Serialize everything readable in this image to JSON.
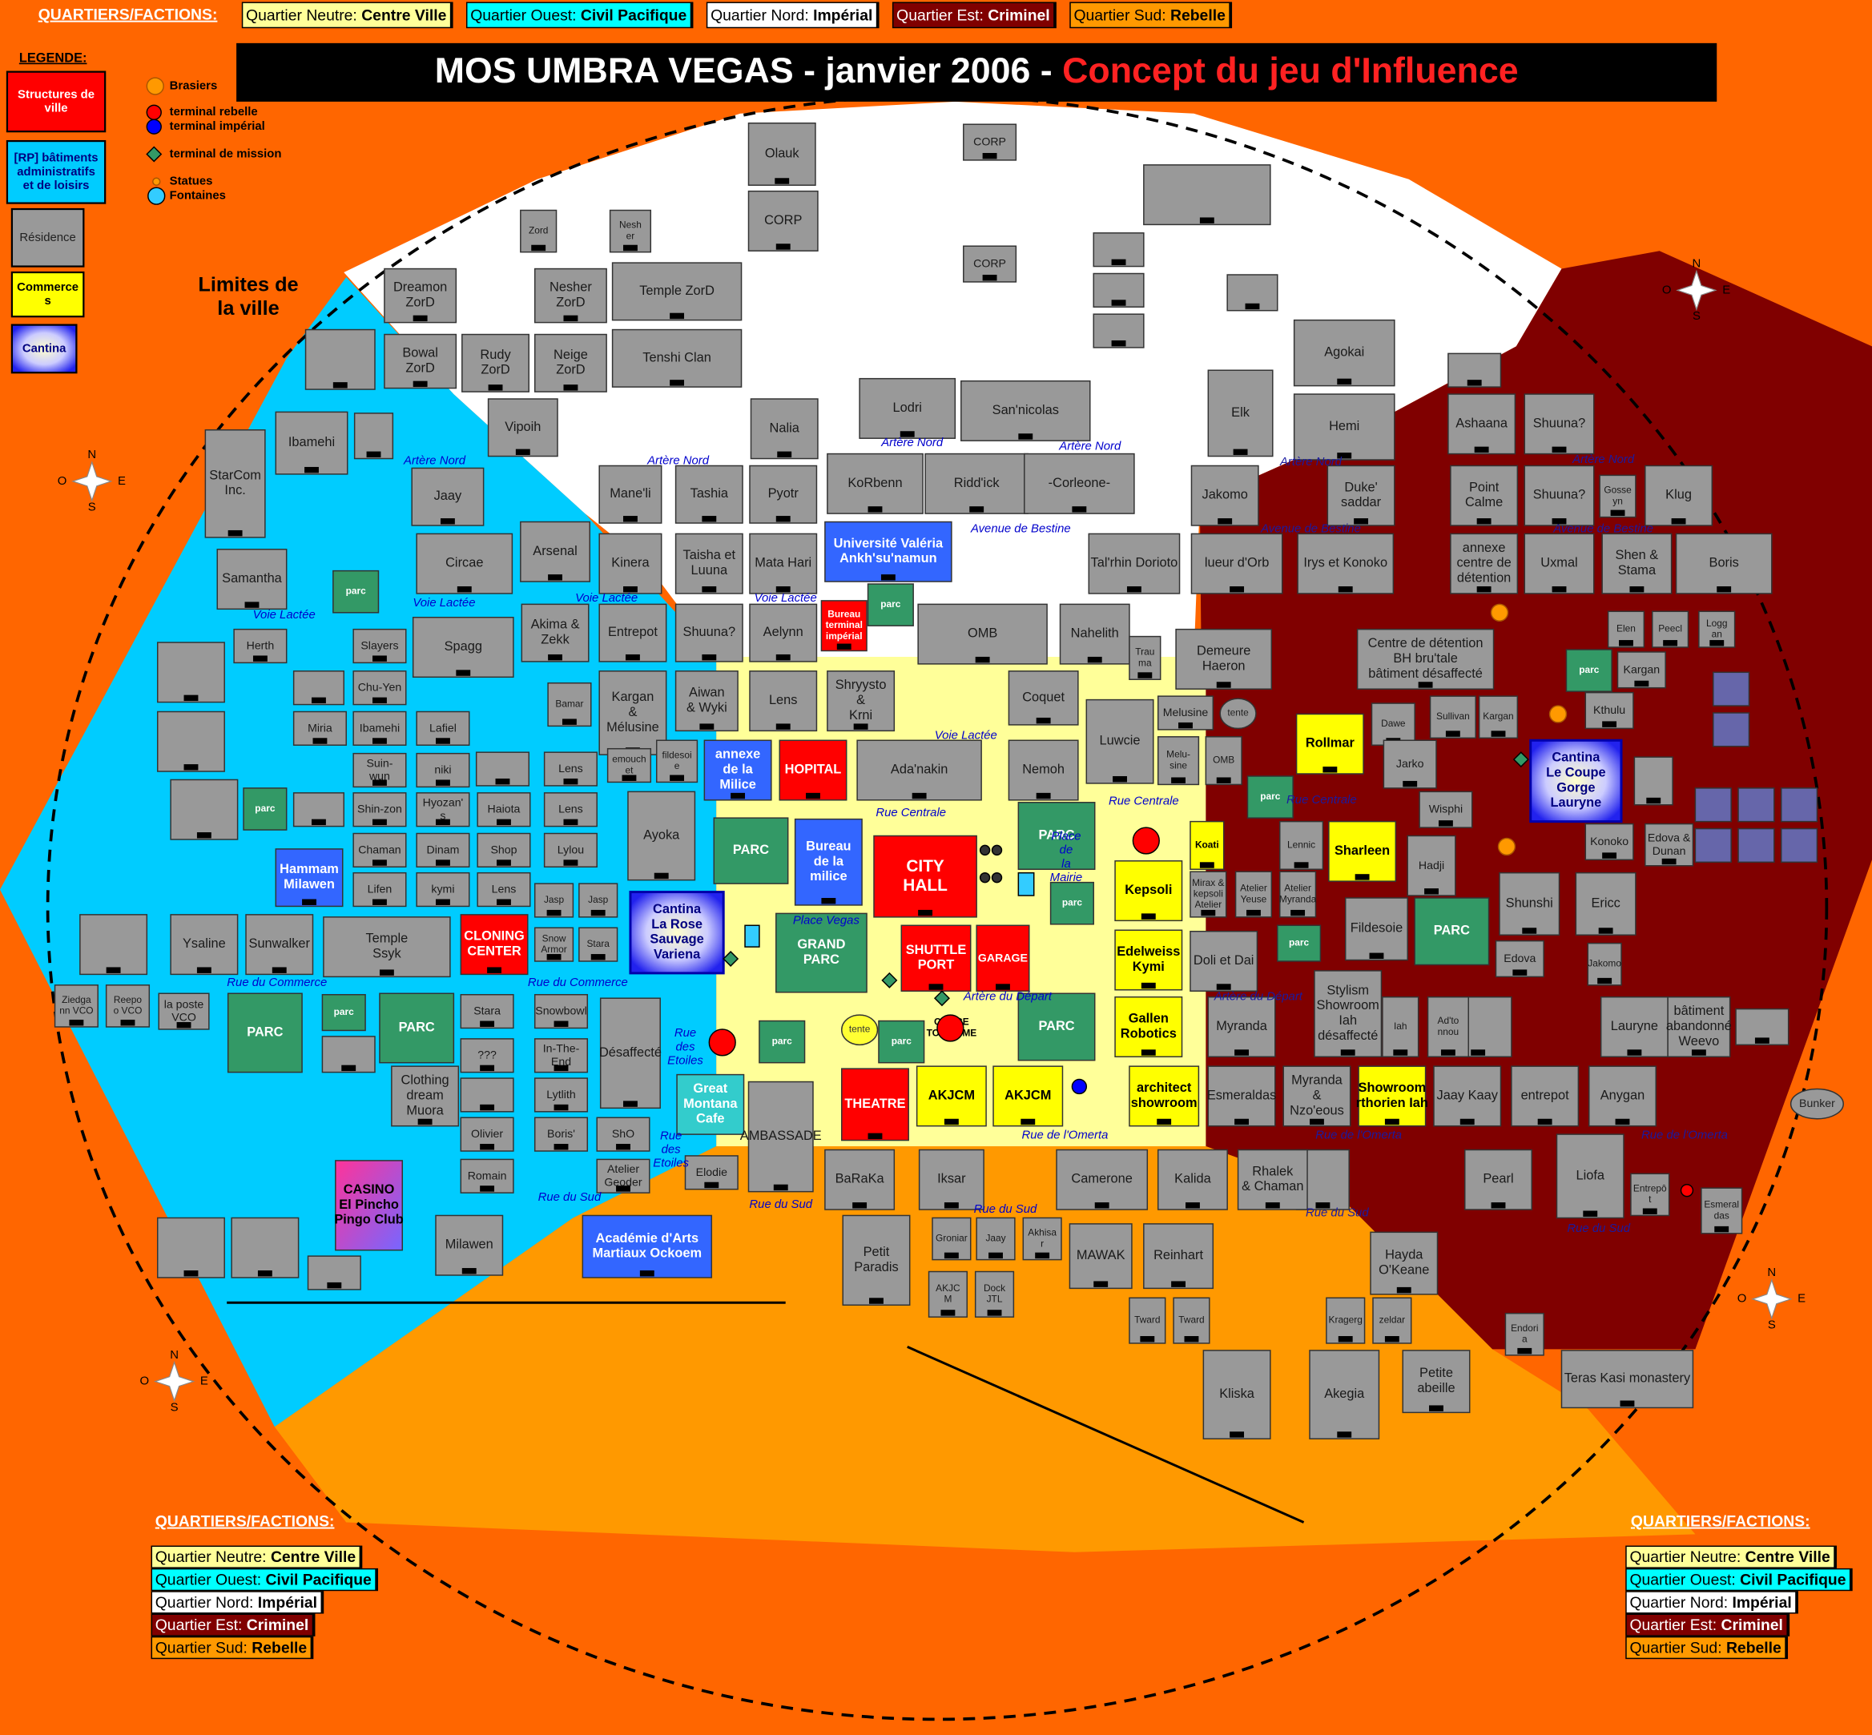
{
  "factions_title": "QUARTIERS/FACTIONS:",
  "factions": [
    {
      "label": "Quartier Neutre: ",
      "name": "Centre Ville"
    },
    {
      "label": "Quartier Ouest: ",
      "name": "Civil Pacifique"
    },
    {
      "label": "Quartier Nord: ",
      "name": "Impérial"
    },
    {
      "label": "Quartier Est: ",
      "name": "Criminel"
    },
    {
      "label": "Quartier Sud: ",
      "name": "Rebelle"
    }
  ],
  "title": {
    "main": "MOS UMBRA VEGAS - janvier 2006 - ",
    "accent": "Concept du jeu d'Influence"
  },
  "legend": {
    "title": "LEGENDE:",
    "boxes": [
      "Structures de\nville",
      "[RP] bâtiments\nadministratifs\net de loisirs",
      "Résidence",
      "Commerce\ns",
      "Cantina"
    ],
    "symbols": [
      "Brasiers",
      "terminal rebelle",
      "terminal impérial",
      "terminal de mission",
      "Statues",
      "Fontaines"
    ]
  },
  "city_limits": "Limites de\nla ville",
  "compass": [
    "N",
    "O",
    "E",
    "S"
  ],
  "buildings": [
    "Olauk",
    "CORP",
    "CORP",
    "CORP",
    "Zord",
    "Nesh\ner",
    "Dreamon\nZorD",
    "Nesher\nZorD",
    "Temple ZorD",
    "Bowal\nZorD",
    "Rudy\nZorD",
    "Neige\nZorD",
    "Tenshi Clan",
    "Vipoih",
    "Nalia",
    "Lodri",
    "San'nicolas",
    "KoRbenn",
    "Ridd'ick",
    "-Corleone-",
    "Mane'li",
    "Tashia",
    "Pyotr",
    "Agokai",
    "Elk",
    "Hemi",
    "Ibamehi",
    "StarCom\nInc.",
    "Jaay",
    "Circae",
    "Arsenal",
    "Samantha",
    "parc",
    "Herth",
    "Slayers",
    "Spagg",
    "Chu-Yen",
    "Ibamehi",
    "Lafiel",
    "Miria",
    "Suin-\nwun",
    "niki",
    "Shin-zon",
    "Hyozan'\ns",
    "Haiota",
    "parc",
    "Chaman",
    "Dinam",
    "Shop",
    "Lifen",
    "kymi",
    "Lens",
    "Hammam\nMilawen",
    "Ysaline",
    "Sunwalker",
    "Temple\nSsyk",
    "CLONING\nCENTER",
    "Ziedga\nnn VCO",
    "Reepo\no VCO",
    "la poste\nVCO",
    "PARC",
    "parc",
    "PARC",
    "Clothing\ndream\nMuora",
    "CASINO\nEl Pincho\nPingo Club",
    "Milawen",
    "Stara",
    "???",
    "Olivier",
    "Romain",
    "Kinera",
    "Taisha et\nLuuna",
    "Mata Hari",
    "Université Valéria\nAnkh'su'namun",
    "Akima &\nZekk",
    "Entrepot",
    "Shuuna?",
    "Aelynn",
    "Bureau\nterminal\nimpérial",
    "parc",
    "OMB",
    "Nahelith",
    "Trau\nma",
    "Kargan\n&\nMélusine",
    "Bamar",
    "Aiwan\n& Wyki",
    "Lens",
    "Shryysto\n&\nKrni",
    "Coquet",
    "emouch\net",
    "fildesoi\ne",
    "Lens",
    "annexe\nde la\nMilice",
    "HOPITAL",
    "Ada'nakin",
    "Nemoh",
    "Luwcie",
    "Lens",
    "Lylou",
    "Ayoka",
    "PARC",
    "Bureau\nde la\nmilice",
    "CITY\nHALL",
    "PARC",
    "parc",
    "Kepsoli",
    "Jasp",
    "Jasp",
    "Cantina\nLa Rose\nSauvage\nVariena",
    "Snow\nArmor",
    "Stara",
    "GRAND\nPARC",
    "SHUTTLE\nPORT",
    "GARAGE",
    "Edelweiss\nKymi",
    "Snowbowl",
    "Désaffecté",
    "In-The-\nEnd",
    "Lytlith",
    "Boris'",
    "ShO",
    "Atelier\nGeoder",
    "Elodie",
    "Great\nMontana\nCafe",
    "AMBASSADE",
    "parc",
    "parc",
    "tente",
    "PARC",
    "Gallen\nRobotics",
    "THEATRE",
    "AKJCM",
    "AKJCM",
    "architect\nshowroom",
    "Académie d'Arts\nMartiaux Ockoem",
    "BaRaKa",
    "Iksar",
    "Camerone",
    "Kalida",
    "Petit\nParadis",
    "Groniar",
    "Jaay",
    "Akhisa\nr",
    "AKJC\nM",
    "Dock\nJTL",
    "MAWAK",
    "Reinhart",
    "Tward",
    "Tward",
    "Kliska",
    "Akegia",
    "Jakomo",
    "Duke'\nsaddar",
    "Ashaana",
    "Shuuna?",
    "Point\nCalme",
    "Shuuna?",
    "Gosse\nyn",
    "Klug",
    "Tal'rhin Dorioto",
    "lueur d'Orb",
    "Irys et Konoko",
    "annexe\ncentre de\ndétention",
    "Uxmal",
    "Shen &\nStama",
    "Boris",
    "Demeure\nHaeron",
    "Centre de détention\nBH bru'tale\nbâtiment désaffecté",
    "Elen",
    "Peecl",
    "Logg\nan",
    "parc",
    "Kargan",
    "Melusine",
    "tente",
    "Rollmar",
    "Dawe",
    "Sullivan",
    "Kargan",
    "Kthulu",
    "Melu-\nsine",
    "OMB",
    "Jarko",
    "Cantina\nLe Coupe\nGorge\nLauryne",
    "parc",
    "Wisphi",
    "Koati",
    "Lennic",
    "Mirax &\nkepsoli\nAtelier",
    "Atelier\nYeuse",
    "Atelier\nMyranda",
    "Sharleen",
    "Hadji",
    "Konoko",
    "Edova &\nDunan",
    "Shunshi",
    "Ericc",
    "Fildesoie",
    "PARC",
    "parc",
    "Doli et Dai",
    "Edova",
    "Jakomo",
    "Myranda",
    "Stylism\nShowroom\nIah\ndésaffecté",
    "Iah",
    "Ad'to\nnnou",
    "Lauryne",
    "bâtiment\nabandonné\nWeevo",
    "Esmeraldas",
    "Myranda\n&\nNzo'eous",
    "Showroom\nrthorien Iah",
    "Jaay Kaay",
    "entrepot",
    "Anygan",
    "Bunker",
    "Rhalek\n& Chaman",
    "Pearl",
    "Liofa",
    "Entrepô\nt",
    "Esmeral\ndas",
    "Hayda\nO'Keane",
    "zeldar",
    "Kragerg",
    "Endori\na",
    "Petite\nabeille",
    "Teras Kasi monastery",
    "OFFICE\nTOURISME"
  ],
  "streets": [
    "Artère Nord",
    "Artère Nord",
    "Artère Nord",
    "Artère Nord",
    "Avenue de Bestine",
    "Voie Lactée",
    "Voie Lactée",
    "Voie Lactée",
    "Voie Lactée",
    "Voie Lactée",
    "Rue Centrale",
    "Rue Centrale",
    "Place\nde\nla\nMairie",
    "Place Vegas",
    "Rue du Commerce",
    "Rue du Commerce",
    "Rue\ndes\nEtoiles",
    "Rue\ndes\nEtoiles",
    "Rue du Sud",
    "Rue du Sud",
    "Rue du Sud",
    "Artère du Départ",
    "Rue de l'Omerta",
    "Artère Nord",
    "Artère Nord",
    "Avenue de Bestine",
    "Avenue de Bestine",
    "Rue Centrale",
    "Artère du Départ",
    "Rue de l'Omerta",
    "Rue de l'Omerta",
    "Rue du Sud",
    "Rue du Sud"
  ]
}
